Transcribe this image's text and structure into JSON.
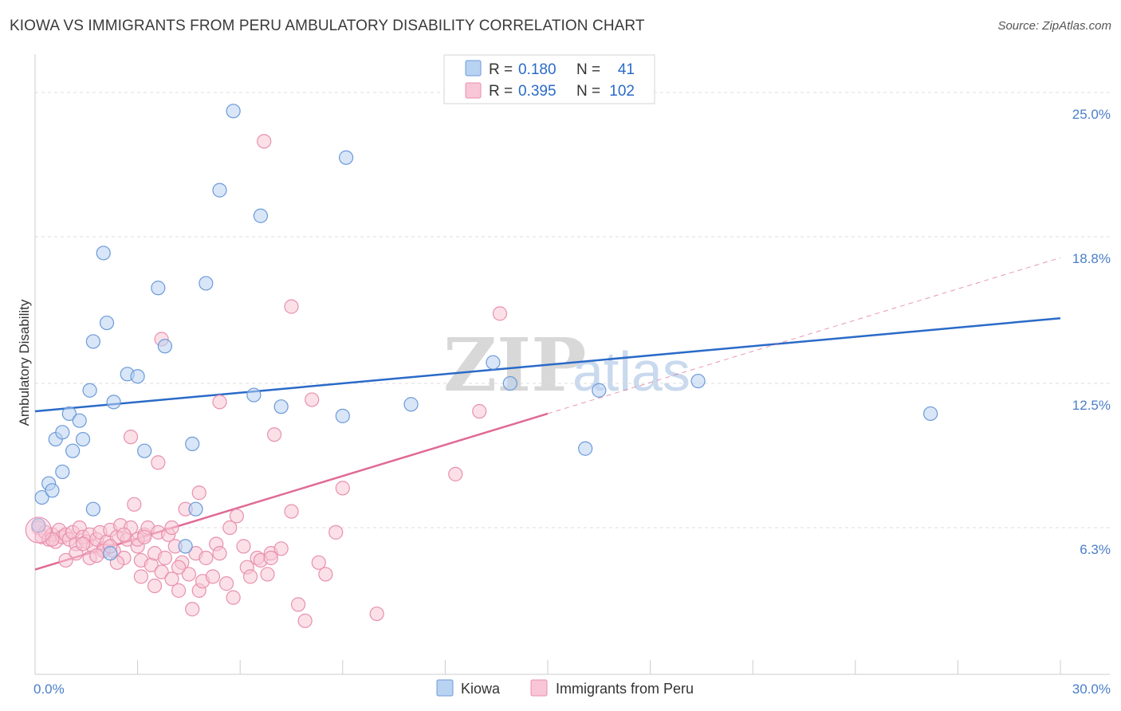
{
  "title": "KIOWA VS IMMIGRANTS FROM PERU AMBULATORY DISABILITY CORRELATION CHART",
  "source": "Source: ZipAtlas.com",
  "watermark": {
    "zip": "ZIP",
    "atlas": "atlas"
  },
  "colors": {
    "kiowa_fill": "#b8d2f2",
    "kiowa_stroke": "#6c9ad8",
    "kiowa_line": "#2a6ac8",
    "peru_fill": "#f8c6d6",
    "peru_stroke": "#e890ae",
    "peru_line": "#e06a96",
    "grid": "#dddddd",
    "tick_text": "#4a7ec8"
  },
  "legend": {
    "rows": [
      {
        "r_label": "R =",
        "r_value": "0.180",
        "n_label": "N =",
        "n_value": "41"
      },
      {
        "r_label": "R =",
        "r_value": "0.395",
        "n_label": "N =",
        "n_value": "102"
      }
    ]
  },
  "bottom_legend": [
    "Kiowa",
    "Immigrants from Peru"
  ],
  "chart_data": {
    "type": "scatter",
    "title": "KIOWA VS IMMIGRANTS FROM PERU AMBULATORY DISABILITY CORRELATION CHART",
    "xlabel": "",
    "ylabel": "Ambulatory Disability",
    "xlim": [
      0,
      30
    ],
    "ylim": [
      0,
      26.3
    ],
    "x_tick_labels": [
      {
        "value": 0,
        "label": "0.0%"
      },
      {
        "value": 30,
        "label": "30.0%"
      }
    ],
    "y_tick_labels": [
      {
        "value": 6.3,
        "label": "6.3%"
      },
      {
        "value": 12.5,
        "label": "12.5%"
      },
      {
        "value": 18.8,
        "label": "18.8%"
      },
      {
        "value": 25.0,
        "label": "25.0%"
      }
    ],
    "grid": true,
    "legend_position": "top-center",
    "series": [
      {
        "name": "Kiowa",
        "r": 0.18,
        "n": 41,
        "trend": {
          "x": [
            0,
            30
          ],
          "y": [
            11.3,
            15.3
          ]
        },
        "points": [
          [
            0.1,
            6.4
          ],
          [
            0.2,
            7.6
          ],
          [
            0.4,
            8.2
          ],
          [
            0.5,
            7.9
          ],
          [
            0.6,
            10.1
          ],
          [
            0.8,
            8.7
          ],
          [
            0.8,
            10.4
          ],
          [
            1.0,
            11.2
          ],
          [
            1.1,
            9.6
          ],
          [
            1.3,
            10.9
          ],
          [
            1.4,
            10.1
          ],
          [
            1.6,
            12.2
          ],
          [
            1.7,
            7.1
          ],
          [
            1.7,
            14.3
          ],
          [
            2.0,
            18.1
          ],
          [
            2.1,
            15.1
          ],
          [
            2.3,
            11.7
          ],
          [
            2.7,
            12.9
          ],
          [
            3.0,
            12.8
          ],
          [
            3.2,
            9.6
          ],
          [
            3.6,
            16.6
          ],
          [
            3.8,
            14.1
          ],
          [
            4.6,
            9.9
          ],
          [
            4.7,
            7.1
          ],
          [
            5.0,
            16.8
          ],
          [
            5.4,
            20.8
          ],
          [
            5.8,
            24.2
          ],
          [
            6.4,
            12.0
          ],
          [
            6.6,
            19.7
          ],
          [
            7.2,
            11.5
          ],
          [
            9.0,
            11.1
          ],
          [
            9.1,
            22.2
          ],
          [
            11.0,
            11.6
          ],
          [
            13.4,
            13.4
          ],
          [
            13.9,
            12.5
          ],
          [
            16.1,
            9.7
          ],
          [
            16.5,
            12.2
          ],
          [
            19.4,
            12.6
          ],
          [
            26.2,
            11.2
          ],
          [
            2.2,
            5.2
          ],
          [
            4.4,
            5.5
          ]
        ]
      },
      {
        "name": "Immigrants from Peru",
        "r": 0.395,
        "n": 102,
        "trend": {
          "x": [
            0,
            15
          ],
          "y": [
            4.5,
            11.2
          ]
        },
        "trend_extension": {
          "x": [
            15,
            30
          ],
          "y": [
            11.2,
            17.9
          ]
        },
        "points": [
          [
            0.1,
            6.3
          ],
          [
            0.2,
            5.9
          ],
          [
            0.3,
            6.1
          ],
          [
            0.4,
            5.8
          ],
          [
            0.5,
            6.0
          ],
          [
            0.6,
            5.7
          ],
          [
            0.7,
            6.2
          ],
          [
            0.8,
            5.9
          ],
          [
            0.9,
            6.0
          ],
          [
            1.0,
            5.8
          ],
          [
            1.1,
            6.1
          ],
          [
            1.2,
            5.6
          ],
          [
            1.3,
            6.3
          ],
          [
            1.4,
            5.9
          ],
          [
            1.5,
            5.7
          ],
          [
            1.6,
            6.0
          ],
          [
            1.7,
            5.5
          ],
          [
            1.8,
            5.8
          ],
          [
            1.9,
            6.1
          ],
          [
            2.0,
            5.4
          ],
          [
            2.1,
            5.7
          ],
          [
            2.2,
            6.2
          ],
          [
            2.3,
            5.3
          ],
          [
            2.4,
            5.9
          ],
          [
            2.5,
            6.4
          ],
          [
            2.6,
            5.0
          ],
          [
            2.7,
            5.8
          ],
          [
            2.8,
            6.3
          ],
          [
            2.9,
            7.3
          ],
          [
            3.0,
            5.5
          ],
          [
            3.1,
            4.9
          ],
          [
            3.2,
            6.0
          ],
          [
            3.3,
            6.3
          ],
          [
            3.4,
            4.7
          ],
          [
            3.5,
            5.2
          ],
          [
            3.6,
            6.1
          ],
          [
            3.7,
            4.4
          ],
          [
            3.8,
            5.0
          ],
          [
            3.9,
            6.0
          ],
          [
            4.0,
            4.1
          ],
          [
            4.1,
            5.5
          ],
          [
            4.2,
            3.6
          ],
          [
            4.3,
            4.8
          ],
          [
            4.4,
            7.1
          ],
          [
            4.5,
            4.3
          ],
          [
            4.6,
            2.8
          ],
          [
            4.7,
            5.2
          ],
          [
            4.8,
            3.6
          ],
          [
            4.9,
            4.0
          ],
          [
            5.0,
            5.0
          ],
          [
            5.2,
            4.2
          ],
          [
            5.3,
            5.6
          ],
          [
            5.4,
            5.2
          ],
          [
            5.6,
            3.9
          ],
          [
            5.7,
            6.3
          ],
          [
            5.8,
            3.3
          ],
          [
            5.9,
            6.8
          ],
          [
            6.2,
            4.6
          ],
          [
            6.3,
            4.2
          ],
          [
            6.5,
            5.0
          ],
          [
            6.6,
            4.9
          ],
          [
            6.8,
            4.3
          ],
          [
            6.9,
            5.2
          ],
          [
            7.0,
            10.3
          ],
          [
            7.2,
            5.4
          ],
          [
            7.5,
            7.0
          ],
          [
            7.7,
            3.0
          ],
          [
            7.9,
            2.3
          ],
          [
            8.1,
            11.8
          ],
          [
            8.3,
            4.8
          ],
          [
            8.5,
            4.3
          ],
          [
            8.8,
            6.1
          ],
          [
            9.0,
            8.0
          ],
          [
            10.0,
            2.6
          ],
          [
            12.3,
            8.6
          ],
          [
            13.0,
            11.3
          ],
          [
            13.6,
            15.5
          ],
          [
            7.5,
            15.8
          ],
          [
            6.7,
            22.9
          ],
          [
            3.7,
            14.4
          ],
          [
            5.4,
            11.7
          ],
          [
            2.8,
            10.2
          ],
          [
            3.6,
            9.1
          ],
          [
            4.0,
            6.3
          ],
          [
            3.0,
            5.8
          ],
          [
            1.2,
            5.2
          ],
          [
            0.9,
            4.9
          ],
          [
            1.6,
            5.0
          ],
          [
            2.0,
            5.3
          ],
          [
            2.4,
            4.8
          ],
          [
            3.1,
            4.2
          ],
          [
            3.5,
            3.8
          ],
          [
            4.2,
            4.6
          ],
          [
            4.8,
            7.8
          ],
          [
            6.1,
            5.5
          ],
          [
            6.9,
            5.0
          ],
          [
            1.8,
            5.1
          ],
          [
            2.2,
            5.5
          ],
          [
            2.6,
            6.0
          ],
          [
            1.4,
            5.6
          ],
          [
            0.5,
            5.8
          ],
          [
            3.2,
            5.9
          ]
        ]
      }
    ]
  }
}
